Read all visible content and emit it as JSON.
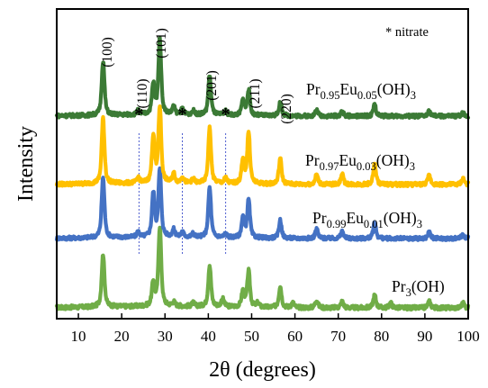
{
  "chart_data": {
    "type": "line",
    "xlabel": "2θ (degrees)",
    "ylabel": "Intensity",
    "xlim": [
      5,
      100
    ],
    "x_ticks": [
      10,
      20,
      30,
      40,
      50,
      60,
      70,
      80,
      90,
      100
    ],
    "y_ticks_shown": false,
    "annotation": "* nitrate",
    "peak_labels": [
      {
        "text": "(100)",
        "x": 16.0
      },
      {
        "text": "(110)",
        "x": 24.5
      },
      {
        "text": "(101)",
        "x": 29.0
      },
      {
        "text": "(201)",
        "x": 40.3
      },
      {
        "text": "(211)",
        "x": 49.5
      },
      {
        "text": "(220)",
        "x": 56.3
      }
    ],
    "nitrate_markers": [
      24.0,
      34.0,
      44.0
    ],
    "series": [
      {
        "name": "Pr(OH)3",
        "label": {
          "base": "Pr",
          "parts": [
            {
              "text": "(OH)",
              "sub": "3"
            }
          ]
        },
        "color": "#70AD47",
        "peaks": [
          [
            15.7,
            0.67
          ],
          [
            27.3,
            0.3
          ],
          [
            28.8,
            1.0
          ],
          [
            32.0,
            0.05
          ],
          [
            36.5,
            0.04
          ],
          [
            40.3,
            0.52
          ],
          [
            43.3,
            0.1
          ],
          [
            48.0,
            0.2
          ],
          [
            49.3,
            0.45
          ],
          [
            51.4,
            0.05
          ],
          [
            56.6,
            0.27
          ],
          [
            59.5,
            0.06
          ],
          [
            65.0,
            0.1
          ],
          [
            70.9,
            0.08
          ],
          [
            78.4,
            0.16
          ],
          [
            82.1,
            0.06
          ],
          [
            91.0,
            0.08
          ],
          [
            98.8,
            0.06
          ]
        ]
      },
      {
        "name": "Pr0.99Eu0.01(OH)3",
        "label": {
          "base": "Pr",
          "parts": [
            {
              "text": "Eu",
              "sub": "0.99"
            },
            {
              "text": "(OH)",
              "sub": "0.01"
            },
            {
              "text": "",
              "sub": "3"
            }
          ]
        },
        "color": "#4472C4",
        "peaks": [
          [
            15.7,
            0.84
          ],
          [
            23.8,
            0.07
          ],
          [
            27.3,
            0.6
          ],
          [
            28.8,
            0.92
          ],
          [
            32.0,
            0.1
          ],
          [
            34.0,
            0.07
          ],
          [
            36.5,
            0.05
          ],
          [
            40.3,
            0.69
          ],
          [
            44.0,
            0.05
          ],
          [
            48.0,
            0.28
          ],
          [
            49.3,
            0.52
          ],
          [
            56.6,
            0.25
          ],
          [
            65.0,
            0.13
          ],
          [
            70.9,
            0.1
          ],
          [
            78.4,
            0.22
          ],
          [
            91.0,
            0.09
          ],
          [
            98.8,
            0.06
          ]
        ]
      },
      {
        "name": "Pr0.97Eu0.03(OH)3",
        "label": {
          "base": "Pr",
          "parts": [
            {
              "text": "Eu",
              "sub": "0.97"
            },
            {
              "text": "(OH)",
              "sub": "0.03"
            },
            {
              "text": "",
              "sub": "3"
            }
          ]
        },
        "color": "#FFC000",
        "peaks": [
          [
            15.7,
            0.87
          ],
          [
            23.8,
            0.07
          ],
          [
            27.3,
            0.62
          ],
          [
            28.8,
            1.0
          ],
          [
            32.0,
            0.12
          ],
          [
            34.0,
            0.08
          ],
          [
            36.5,
            0.05
          ],
          [
            40.3,
            0.73
          ],
          [
            44.0,
            0.07
          ],
          [
            48.0,
            0.3
          ],
          [
            49.3,
            0.68
          ],
          [
            56.6,
            0.34
          ],
          [
            65.0,
            0.13
          ],
          [
            70.9,
            0.13
          ],
          [
            78.4,
            0.27
          ],
          [
            91.0,
            0.12
          ],
          [
            98.8,
            0.08
          ]
        ]
      },
      {
        "name": "Pr0.95Eu0.05(OH)3",
        "label": {
          "base": "Pr",
          "parts": [
            {
              "text": "Eu",
              "sub": "0.95"
            },
            {
              "text": "(OH)",
              "sub": "0.05"
            },
            {
              "text": "",
              "sub": "3"
            }
          ]
        },
        "color": "#3B7A35",
        "peaks": [
          [
            15.7,
            0.73
          ],
          [
            23.8,
            0.05
          ],
          [
            27.3,
            0.4
          ],
          [
            28.8,
            1.0
          ],
          [
            32.0,
            0.1
          ],
          [
            34.0,
            0.07
          ],
          [
            36.5,
            0.05
          ],
          [
            40.3,
            0.52
          ],
          [
            44.0,
            0.05
          ],
          [
            48.0,
            0.2
          ],
          [
            49.3,
            0.34
          ],
          [
            56.6,
            0.18
          ],
          [
            65.0,
            0.08
          ],
          [
            70.9,
            0.06
          ],
          [
            78.4,
            0.15
          ],
          [
            91.0,
            0.06
          ],
          [
            98.8,
            0.05
          ]
        ]
      }
    ]
  }
}
